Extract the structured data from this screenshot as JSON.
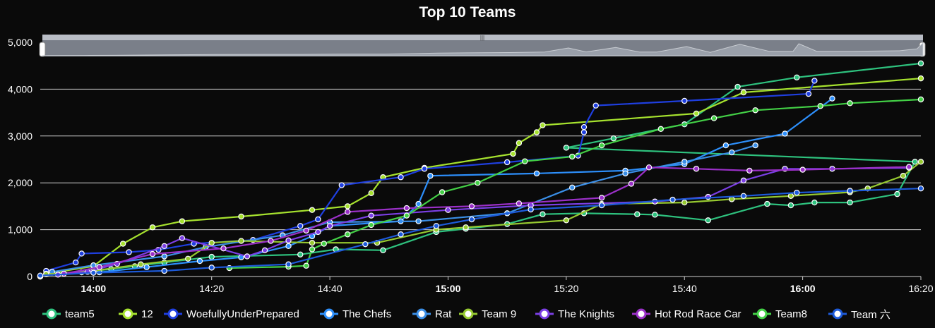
{
  "chart_data": {
    "type": "line",
    "title": "Top 10 Teams",
    "xlabel": "",
    "ylabel": "",
    "x_range": [
      "13:51",
      "16:20"
    ],
    "ylim": [
      0,
      5000
    ],
    "x_ticks": [
      "14:00",
      "14:20",
      "14:40",
      "15:00",
      "15:20",
      "15:40",
      "16:00",
      "16:20"
    ],
    "y_ticks": [
      "0",
      "1,000",
      "2,000",
      "3,000",
      "4,000",
      "5,000"
    ],
    "grid": "horizontal",
    "legend_position": "bottom",
    "zoom_slider": true,
    "series": [
      {
        "name": "team5",
        "color": "#2ec27e",
        "points": [
          [
            "13:51",
            0
          ],
          [
            "13:52",
            50
          ],
          [
            "13:58",
            90
          ],
          [
            "14:03",
            160
          ],
          [
            "14:07",
            220
          ],
          [
            "14:12",
            300
          ],
          [
            "14:20",
            420
          ],
          [
            "14:35",
            470
          ],
          [
            "14:41",
            580
          ],
          [
            "14:49",
            560
          ],
          [
            "14:58",
            950
          ],
          [
            "15:03",
            1020
          ],
          [
            "15:10",
            1120
          ],
          [
            "15:16",
            1330
          ],
          [
            "15:23",
            1350
          ],
          [
            "15:32",
            1330
          ],
          [
            "15:35",
            1320
          ],
          [
            "15:44",
            1200
          ],
          [
            "15:54",
            1550
          ],
          [
            "15:58",
            1520
          ],
          [
            "16:02",
            1580
          ],
          [
            "16:08",
            1580
          ],
          [
            "16:16",
            1760
          ],
          [
            "16:19",
            2450
          ],
          [
            "15:20",
            2750
          ],
          [
            "15:28",
            2950
          ],
          [
            "15:40",
            3250
          ],
          [
            "15:49",
            4050
          ],
          [
            "15:59",
            4250
          ],
          [
            "16:20",
            4550
          ]
        ]
      },
      {
        "name": "12",
        "color": "#a6e22e",
        "points": [
          [
            "13:51",
            0
          ],
          [
            "13:53",
            80
          ],
          [
            "14:00",
            220
          ],
          [
            "14:05",
            700
          ],
          [
            "14:10",
            1050
          ],
          [
            "14:15",
            1180
          ],
          [
            "14:25",
            1280
          ],
          [
            "14:37",
            1420
          ],
          [
            "14:43",
            1500
          ],
          [
            "14:47",
            1780
          ],
          [
            "14:49",
            2120
          ],
          [
            "14:56",
            2320
          ],
          [
            "15:11",
            2620
          ],
          [
            "15:12",
            2850
          ],
          [
            "15:15",
            3080
          ],
          [
            "15:16",
            3230
          ],
          [
            "15:42",
            3480
          ],
          [
            "15:50",
            3930
          ],
          [
            "16:20",
            4230
          ]
        ]
      },
      {
        "name": "WoefullyUnderPrepared",
        "color": "#1f3fe0",
        "points": [
          [
            "13:52",
            120
          ],
          [
            "13:57",
            300
          ],
          [
            "13:58",
            490
          ],
          [
            "14:06",
            520
          ],
          [
            "14:11",
            570
          ],
          [
            "14:17",
            700
          ],
          [
            "14:27",
            780
          ],
          [
            "14:35",
            1080
          ],
          [
            "14:38",
            1220
          ],
          [
            "14:42",
            1950
          ],
          [
            "14:52",
            2120
          ],
          [
            "14:56",
            2300
          ],
          [
            "15:10",
            2440
          ],
          [
            "15:22",
            2580
          ],
          [
            "15:23",
            3080
          ],
          [
            "15:23",
            3190
          ],
          [
            "15:25",
            3650
          ],
          [
            "15:40",
            3750
          ],
          [
            "16:01",
            3900
          ],
          [
            "16:02",
            4180
          ]
        ]
      },
      {
        "name": "The Chefs",
        "color": "#2d8ffb",
        "points": [
          [
            "13:52",
            60
          ],
          [
            "14:01",
            90
          ],
          [
            "14:09",
            200
          ],
          [
            "14:18",
            330
          ],
          [
            "14:25",
            410
          ],
          [
            "14:33",
            650
          ],
          [
            "14:37",
            860
          ],
          [
            "14:40",
            1080
          ],
          [
            "14:52",
            1180
          ],
          [
            "14:55",
            1550
          ],
          [
            "14:57",
            2150
          ],
          [
            "15:15",
            2200
          ],
          [
            "15:30",
            2260
          ],
          [
            "15:40",
            2400
          ],
          [
            "15:47",
            2800
          ],
          [
            "15:57",
            3050
          ],
          [
            "16:05",
            3800
          ]
        ]
      },
      {
        "name": "Rat",
        "color": "#3a8ee6",
        "points": [
          [
            "13:53",
            100
          ],
          [
            "14:00",
            240
          ],
          [
            "14:12",
            430
          ],
          [
            "14:19",
            630
          ],
          [
            "14:32",
            880
          ],
          [
            "14:40",
            1160
          ],
          [
            "14:55",
            1180
          ],
          [
            "15:10",
            1350
          ],
          [
            "15:21",
            1900
          ],
          [
            "15:30",
            2200
          ],
          [
            "15:40",
            2450
          ],
          [
            "15:48",
            2650
          ],
          [
            "15:52",
            2800
          ]
        ]
      },
      {
        "name": "Team 9",
        "color": "#96c930",
        "points": [
          [
            "13:52",
            50
          ],
          [
            "14:00",
            120
          ],
          [
            "14:08",
            260
          ],
          [
            "14:16",
            380
          ],
          [
            "14:20",
            720
          ],
          [
            "14:25",
            760
          ],
          [
            "14:37",
            720
          ],
          [
            "14:48",
            720
          ],
          [
            "14:58",
            1000
          ],
          [
            "15:03",
            1050
          ],
          [
            "15:20",
            1200
          ],
          [
            "15:26",
            1550
          ],
          [
            "15:40",
            1580
          ],
          [
            "15:48",
            1650
          ],
          [
            "15:58",
            1720
          ],
          [
            "16:08",
            1800
          ],
          [
            "16:11",
            1880
          ],
          [
            "16:17",
            2150
          ],
          [
            "16:20",
            2450
          ]
        ]
      },
      {
        "name": "The Knights",
        "color": "#7b3fe4",
        "points": [
          [
            "13:54",
            40
          ],
          [
            "13:59",
            100
          ],
          [
            "14:04",
            270
          ],
          [
            "14:12",
            650
          ],
          [
            "14:15",
            820
          ],
          [
            "14:26",
            430
          ],
          [
            "14:29",
            560
          ],
          [
            "14:33",
            770
          ],
          [
            "14:38",
            950
          ],
          [
            "14:40",
            1080
          ],
          [
            "14:47",
            1300
          ],
          [
            "15:00",
            1420
          ],
          [
            "15:14",
            1520
          ],
          [
            "15:35",
            1600
          ],
          [
            "15:44",
            1700
          ],
          [
            "15:50",
            2050
          ],
          [
            "15:57",
            2300
          ],
          [
            "16:05",
            2300
          ],
          [
            "16:18",
            2320
          ]
        ]
      },
      {
        "name": "Hot Rod Race Car",
        "color": "#9b30c8",
        "points": [
          [
            "13:55",
            60
          ],
          [
            "14:01",
            200
          ],
          [
            "14:10",
            480
          ],
          [
            "14:22",
            600
          ],
          [
            "14:30",
            760
          ],
          [
            "14:36",
            980
          ],
          [
            "14:43",
            1380
          ],
          [
            "14:53",
            1460
          ],
          [
            "15:04",
            1500
          ],
          [
            "15:12",
            1560
          ],
          [
            "15:26",
            1680
          ],
          [
            "15:31",
            1980
          ],
          [
            "15:34",
            2330
          ],
          [
            "15:42",
            2300
          ],
          [
            "15:51",
            2260
          ],
          [
            "16:00",
            2280
          ],
          [
            "16:18",
            2340
          ]
        ]
      },
      {
        "name": "Team8",
        "color": "#43d046",
        "points": [
          [
            "14:23",
            180
          ],
          [
            "14:33",
            210
          ],
          [
            "14:36",
            230
          ],
          [
            "14:37",
            580
          ],
          [
            "14:39",
            700
          ],
          [
            "14:43",
            900
          ],
          [
            "14:47",
            1100
          ],
          [
            "14:53",
            1300
          ],
          [
            "14:59",
            1800
          ],
          [
            "15:05",
            2000
          ],
          [
            "15:13",
            2460
          ],
          [
            "15:21",
            2560
          ],
          [
            "15:26",
            2800
          ],
          [
            "15:36",
            3150
          ],
          [
            "15:45",
            3380
          ],
          [
            "15:52",
            3550
          ],
          [
            "16:03",
            3640
          ],
          [
            "16:08",
            3700
          ],
          [
            "16:20",
            3780
          ]
        ]
      },
      {
        "name": "Team 六",
        "color": "#1d5ad9",
        "points": [
          [
            "13:51",
            20
          ],
          [
            "14:00",
            80
          ],
          [
            "14:12",
            120
          ],
          [
            "14:20",
            190
          ],
          [
            "14:33",
            260
          ],
          [
            "14:46",
            690
          ],
          [
            "14:52",
            900
          ],
          [
            "14:58",
            1080
          ],
          [
            "15:04",
            1220
          ],
          [
            "15:14",
            1430
          ],
          [
            "15:26",
            1520
          ],
          [
            "15:38",
            1640
          ],
          [
            "15:50",
            1720
          ],
          [
            "15:59",
            1790
          ],
          [
            "16:08",
            1830
          ],
          [
            "16:20",
            1880
          ]
        ]
      }
    ]
  }
}
